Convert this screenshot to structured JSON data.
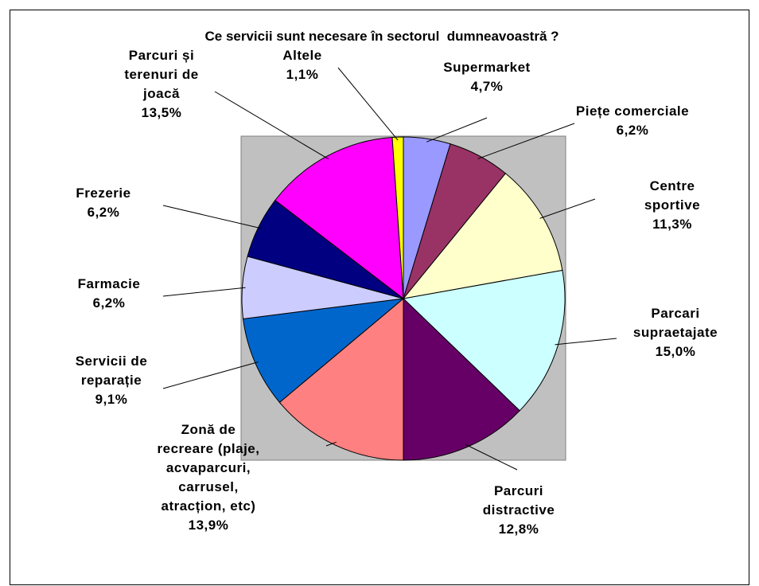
{
  "chart_data": {
    "type": "pie",
    "title": "Ce servicii sunt necesare în sectorul  dumneavoastră ?",
    "categories": [
      "Supermarket",
      "Piețe comerciale",
      "Centre sportive",
      "Parcari\nsupraetajate",
      "Parcuri\ndistractive",
      "Zonă de\nrecreare (plaje,\nacvaparcuri,\ncarrusel,\natracțion, etc)",
      "Servicii de\nreparație",
      "Farmacie",
      "Frezerie",
      "Parcuri și\nterenuri de\njoacă",
      "Altele"
    ],
    "values": [
      4.7,
      6.2,
      11.3,
      15.0,
      12.8,
      13.9,
      9.1,
      6.2,
      6.2,
      13.5,
      1.1
    ],
    "value_labels": [
      "4,7%",
      "6,2%",
      "11,3%",
      "15,0%",
      "12,8%",
      "13,9%",
      "9,1%",
      "6,2%",
      "6,2%",
      "13,5%",
      "1,1%"
    ],
    "colors": [
      "#9999ff",
      "#993366",
      "#ffffcc",
      "#ccffff",
      "#660066",
      "#ff8080",
      "#0066cc",
      "#ccccff",
      "#000080",
      "#ff00ff",
      "#ffff00"
    ]
  }
}
